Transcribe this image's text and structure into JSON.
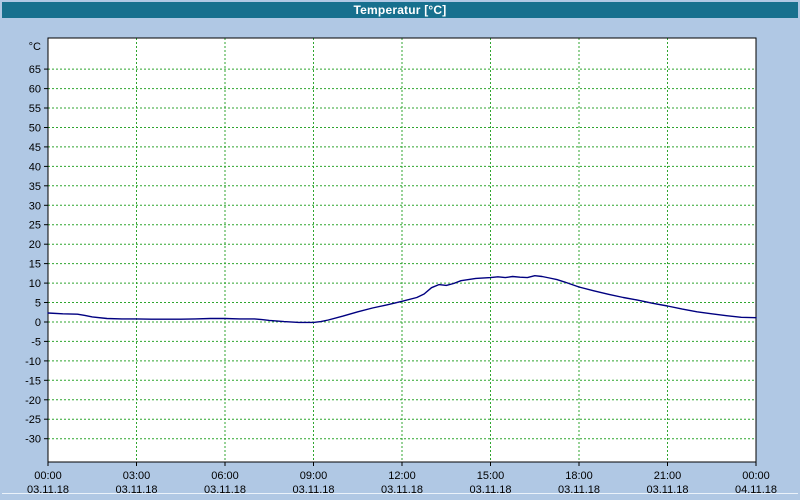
{
  "window": {
    "title": "Temperatur [°C]"
  },
  "colors": {
    "background": "#b0c8e4",
    "titlebar_bg": "#17708e",
    "titlebar_text": "#ffffff",
    "plot_bg": "#ffffff",
    "grid": "#2fa52f",
    "axis": "#000000",
    "label": "#000000",
    "series_line": "#000080"
  },
  "chart_data": {
    "type": "line",
    "title": "Temperatur [°C]",
    "xlabel": "",
    "ylabel": "°C",
    "xlim": [
      0,
      24
    ],
    "ylim": [
      -36,
      73
    ],
    "ytick_range": [
      -30,
      65
    ],
    "ytick_step": 5,
    "xtick_step_hours": 3,
    "grid": true,
    "legend": "none",
    "x_axis_labels": [
      {
        "time": "00:00",
        "date": "03.11.18"
      },
      {
        "time": "03:00",
        "date": "03.11.18"
      },
      {
        "time": "06:00",
        "date": "03.11.18"
      },
      {
        "time": "09:00",
        "date": "03.11.18"
      },
      {
        "time": "12:00",
        "date": "03.11.18"
      },
      {
        "time": "15:00",
        "date": "03.11.18"
      },
      {
        "time": "18:00",
        "date": "03.11.18"
      },
      {
        "time": "21:00",
        "date": "03.11.18"
      },
      {
        "time": "00:00",
        "date": "04.11.18"
      }
    ],
    "series": [
      {
        "name": "Temperatur",
        "unit": "°C",
        "color": "#000080",
        "points": [
          [
            0,
            2.3
          ],
          [
            0.5,
            2.1
          ],
          [
            1,
            2.0
          ],
          [
            1.25,
            1.7
          ],
          [
            1.5,
            1.3
          ],
          [
            2,
            0.9
          ],
          [
            2.5,
            0.8
          ],
          [
            3,
            0.8
          ],
          [
            3.5,
            0.7
          ],
          [
            4,
            0.7
          ],
          [
            4.5,
            0.7
          ],
          [
            5,
            0.8
          ],
          [
            5.5,
            0.9
          ],
          [
            6,
            0.9
          ],
          [
            6.5,
            0.8
          ],
          [
            7,
            0.8
          ],
          [
            7.25,
            0.6
          ],
          [
            7.5,
            0.4
          ],
          [
            8,
            0.1
          ],
          [
            8.5,
            -0.1
          ],
          [
            9,
            -0.1
          ],
          [
            9.25,
            0.1
          ],
          [
            9.5,
            0.5
          ],
          [
            10,
            1.5
          ],
          [
            10.5,
            2.6
          ],
          [
            11,
            3.6
          ],
          [
            11.5,
            4.4
          ],
          [
            12,
            5.3
          ],
          [
            12.5,
            6.3
          ],
          [
            12.75,
            7.2
          ],
          [
            13,
            8.8
          ],
          [
            13.25,
            9.6
          ],
          [
            13.5,
            9.4
          ],
          [
            13.75,
            9.9
          ],
          [
            14,
            10.6
          ],
          [
            14.25,
            10.9
          ],
          [
            14.5,
            11.2
          ],
          [
            15,
            11.4
          ],
          [
            15.25,
            11.6
          ],
          [
            15.5,
            11.4
          ],
          [
            15.75,
            11.7
          ],
          [
            16,
            11.5
          ],
          [
            16.25,
            11.4
          ],
          [
            16.5,
            11.9
          ],
          [
            16.75,
            11.7
          ],
          [
            17,
            11.3
          ],
          [
            17.25,
            10.9
          ],
          [
            17.5,
            10.3
          ],
          [
            18,
            9.0
          ],
          [
            18.5,
            8.0
          ],
          [
            19,
            7.1
          ],
          [
            19.5,
            6.3
          ],
          [
            20,
            5.6
          ],
          [
            20.5,
            4.8
          ],
          [
            21,
            4.1
          ],
          [
            21.5,
            3.3
          ],
          [
            22,
            2.6
          ],
          [
            22.5,
            2.1
          ],
          [
            23,
            1.6
          ],
          [
            23.5,
            1.2
          ],
          [
            24,
            1.1
          ]
        ]
      }
    ]
  }
}
